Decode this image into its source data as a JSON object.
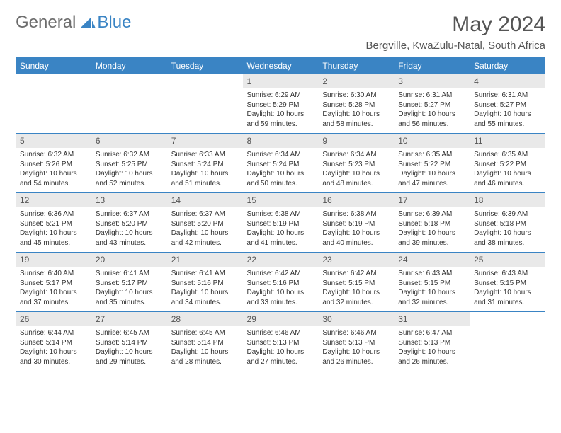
{
  "brand": {
    "general": "General",
    "blue": "Blue"
  },
  "title": "May 2024",
  "location": "Bergville, KwaZulu-Natal, South Africa",
  "colors": {
    "accent": "#3a84c4",
    "daynum_bg": "#e9e9e9",
    "text": "#333333",
    "title": "#555555",
    "bg": "#ffffff"
  },
  "weekdays": [
    "Sunday",
    "Monday",
    "Tuesday",
    "Wednesday",
    "Thursday",
    "Friday",
    "Saturday"
  ],
  "weeks": [
    [
      null,
      null,
      null,
      {
        "n": "1",
        "sr": "Sunrise: 6:29 AM",
        "ss": "Sunset: 5:29 PM",
        "dl": "Daylight: 10 hours and 59 minutes."
      },
      {
        "n": "2",
        "sr": "Sunrise: 6:30 AM",
        "ss": "Sunset: 5:28 PM",
        "dl": "Daylight: 10 hours and 58 minutes."
      },
      {
        "n": "3",
        "sr": "Sunrise: 6:31 AM",
        "ss": "Sunset: 5:27 PM",
        "dl": "Daylight: 10 hours and 56 minutes."
      },
      {
        "n": "4",
        "sr": "Sunrise: 6:31 AM",
        "ss": "Sunset: 5:27 PM",
        "dl": "Daylight: 10 hours and 55 minutes."
      }
    ],
    [
      {
        "n": "5",
        "sr": "Sunrise: 6:32 AM",
        "ss": "Sunset: 5:26 PM",
        "dl": "Daylight: 10 hours and 54 minutes."
      },
      {
        "n": "6",
        "sr": "Sunrise: 6:32 AM",
        "ss": "Sunset: 5:25 PM",
        "dl": "Daylight: 10 hours and 52 minutes."
      },
      {
        "n": "7",
        "sr": "Sunrise: 6:33 AM",
        "ss": "Sunset: 5:24 PM",
        "dl": "Daylight: 10 hours and 51 minutes."
      },
      {
        "n": "8",
        "sr": "Sunrise: 6:34 AM",
        "ss": "Sunset: 5:24 PM",
        "dl": "Daylight: 10 hours and 50 minutes."
      },
      {
        "n": "9",
        "sr": "Sunrise: 6:34 AM",
        "ss": "Sunset: 5:23 PM",
        "dl": "Daylight: 10 hours and 48 minutes."
      },
      {
        "n": "10",
        "sr": "Sunrise: 6:35 AM",
        "ss": "Sunset: 5:22 PM",
        "dl": "Daylight: 10 hours and 47 minutes."
      },
      {
        "n": "11",
        "sr": "Sunrise: 6:35 AM",
        "ss": "Sunset: 5:22 PM",
        "dl": "Daylight: 10 hours and 46 minutes."
      }
    ],
    [
      {
        "n": "12",
        "sr": "Sunrise: 6:36 AM",
        "ss": "Sunset: 5:21 PM",
        "dl": "Daylight: 10 hours and 45 minutes."
      },
      {
        "n": "13",
        "sr": "Sunrise: 6:37 AM",
        "ss": "Sunset: 5:20 PM",
        "dl": "Daylight: 10 hours and 43 minutes."
      },
      {
        "n": "14",
        "sr": "Sunrise: 6:37 AM",
        "ss": "Sunset: 5:20 PM",
        "dl": "Daylight: 10 hours and 42 minutes."
      },
      {
        "n": "15",
        "sr": "Sunrise: 6:38 AM",
        "ss": "Sunset: 5:19 PM",
        "dl": "Daylight: 10 hours and 41 minutes."
      },
      {
        "n": "16",
        "sr": "Sunrise: 6:38 AM",
        "ss": "Sunset: 5:19 PM",
        "dl": "Daylight: 10 hours and 40 minutes."
      },
      {
        "n": "17",
        "sr": "Sunrise: 6:39 AM",
        "ss": "Sunset: 5:18 PM",
        "dl": "Daylight: 10 hours and 39 minutes."
      },
      {
        "n": "18",
        "sr": "Sunrise: 6:39 AM",
        "ss": "Sunset: 5:18 PM",
        "dl": "Daylight: 10 hours and 38 minutes."
      }
    ],
    [
      {
        "n": "19",
        "sr": "Sunrise: 6:40 AM",
        "ss": "Sunset: 5:17 PM",
        "dl": "Daylight: 10 hours and 37 minutes."
      },
      {
        "n": "20",
        "sr": "Sunrise: 6:41 AM",
        "ss": "Sunset: 5:17 PM",
        "dl": "Daylight: 10 hours and 35 minutes."
      },
      {
        "n": "21",
        "sr": "Sunrise: 6:41 AM",
        "ss": "Sunset: 5:16 PM",
        "dl": "Daylight: 10 hours and 34 minutes."
      },
      {
        "n": "22",
        "sr": "Sunrise: 6:42 AM",
        "ss": "Sunset: 5:16 PM",
        "dl": "Daylight: 10 hours and 33 minutes."
      },
      {
        "n": "23",
        "sr": "Sunrise: 6:42 AM",
        "ss": "Sunset: 5:15 PM",
        "dl": "Daylight: 10 hours and 32 minutes."
      },
      {
        "n": "24",
        "sr": "Sunrise: 6:43 AM",
        "ss": "Sunset: 5:15 PM",
        "dl": "Daylight: 10 hours and 32 minutes."
      },
      {
        "n": "25",
        "sr": "Sunrise: 6:43 AM",
        "ss": "Sunset: 5:15 PM",
        "dl": "Daylight: 10 hours and 31 minutes."
      }
    ],
    [
      {
        "n": "26",
        "sr": "Sunrise: 6:44 AM",
        "ss": "Sunset: 5:14 PM",
        "dl": "Daylight: 10 hours and 30 minutes."
      },
      {
        "n": "27",
        "sr": "Sunrise: 6:45 AM",
        "ss": "Sunset: 5:14 PM",
        "dl": "Daylight: 10 hours and 29 minutes."
      },
      {
        "n": "28",
        "sr": "Sunrise: 6:45 AM",
        "ss": "Sunset: 5:14 PM",
        "dl": "Daylight: 10 hours and 28 minutes."
      },
      {
        "n": "29",
        "sr": "Sunrise: 6:46 AM",
        "ss": "Sunset: 5:13 PM",
        "dl": "Daylight: 10 hours and 27 minutes."
      },
      {
        "n": "30",
        "sr": "Sunrise: 6:46 AM",
        "ss": "Sunset: 5:13 PM",
        "dl": "Daylight: 10 hours and 26 minutes."
      },
      {
        "n": "31",
        "sr": "Sunrise: 6:47 AM",
        "ss": "Sunset: 5:13 PM",
        "dl": "Daylight: 10 hours and 26 minutes."
      },
      null
    ]
  ]
}
